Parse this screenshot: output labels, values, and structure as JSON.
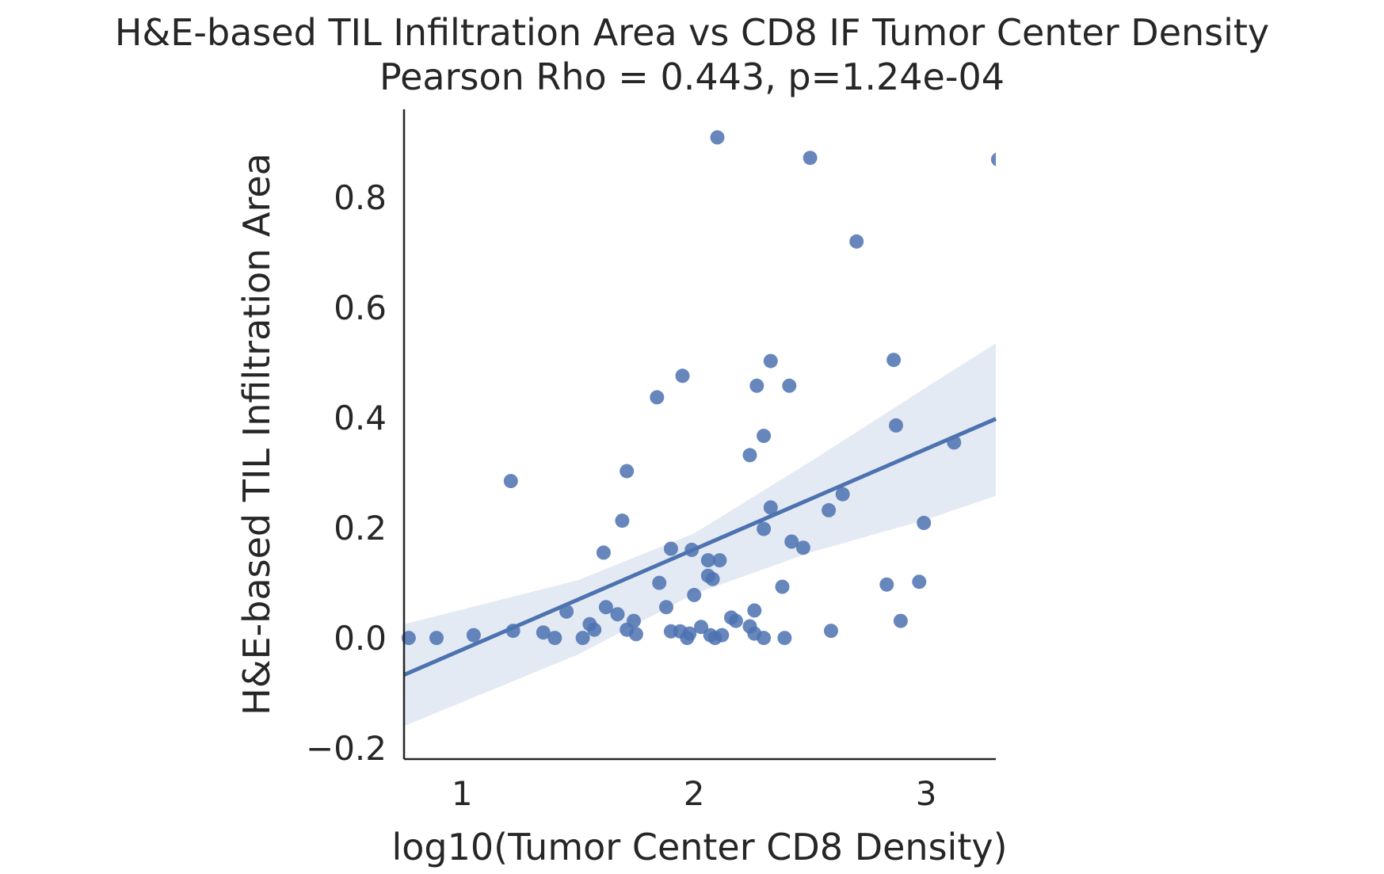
{
  "chart_data": {
    "type": "scatter",
    "title": "H&E-based TIL Infiltration Area vs CD8 IF Tumor Center Density",
    "subtitle": "Pearson Rho = 0.443, p=1.24e-04",
    "xlabel": "log10(Tumor Center CD8 Density)",
    "ylabel": "H&E-based TIL Infiltration Area",
    "xlim": [
      0.75,
      3.3
    ],
    "ylim": [
      -0.22,
      0.96
    ],
    "xticks": [
      1,
      2,
      3
    ],
    "xtick_labels": [
      "1",
      "2",
      "3"
    ],
    "yticks": [
      -0.2,
      0.0,
      0.2,
      0.4,
      0.6,
      0.8
    ],
    "ytick_labels": [
      "−0.2",
      "0.0",
      "0.2",
      "0.4",
      "0.6",
      "0.8"
    ],
    "grid": false,
    "colors": {
      "points": "#4c72b0",
      "line": "#4c72b0",
      "band": "#4c72b0"
    },
    "points": [
      [
        0.77,
        0.0
      ],
      [
        0.89,
        0.0
      ],
      [
        1.05,
        0.005
      ],
      [
        1.21,
        0.285
      ],
      [
        1.22,
        0.013
      ],
      [
        1.35,
        0.01
      ],
      [
        1.4,
        0.0
      ],
      [
        1.45,
        0.048
      ],
      [
        1.52,
        0.0
      ],
      [
        1.55,
        0.025
      ],
      [
        1.57,
        0.015
      ],
      [
        1.61,
        0.155
      ],
      [
        1.62,
        0.056
      ],
      [
        1.67,
        0.043
      ],
      [
        1.69,
        0.213
      ],
      [
        1.71,
        0.303
      ],
      [
        1.71,
        0.015
      ],
      [
        1.74,
        0.031
      ],
      [
        1.75,
        0.007
      ],
      [
        1.84,
        0.437
      ],
      [
        1.85,
        0.1
      ],
      [
        1.88,
        0.056
      ],
      [
        1.9,
        0.012
      ],
      [
        1.9,
        0.162
      ],
      [
        1.94,
        0.012
      ],
      [
        1.95,
        0.476
      ],
      [
        1.97,
        0.0
      ],
      [
        1.98,
        0.008
      ],
      [
        1.99,
        0.16
      ],
      [
        2.0,
        0.078
      ],
      [
        2.03,
        0.02
      ],
      [
        2.06,
        0.141
      ],
      [
        2.06,
        0.113
      ],
      [
        2.07,
        0.005
      ],
      [
        2.08,
        0.107
      ],
      [
        2.09,
        0.0
      ],
      [
        2.1,
        0.909
      ],
      [
        2.11,
        0.141
      ],
      [
        2.12,
        0.005
      ],
      [
        2.16,
        0.037
      ],
      [
        2.18,
        0.031
      ],
      [
        2.24,
        0.332
      ],
      [
        2.24,
        0.021
      ],
      [
        2.26,
        0.05
      ],
      [
        2.26,
        0.008
      ],
      [
        2.27,
        0.458
      ],
      [
        2.3,
        0.367
      ],
      [
        2.3,
        0.198
      ],
      [
        2.3,
        0.0
      ],
      [
        2.33,
        0.503
      ],
      [
        2.33,
        0.237
      ],
      [
        2.38,
        0.093
      ],
      [
        2.39,
        0.0
      ],
      [
        2.41,
        0.458
      ],
      [
        2.42,
        0.175
      ],
      [
        2.47,
        0.164
      ],
      [
        2.5,
        0.872
      ],
      [
        2.58,
        0.232
      ],
      [
        2.59,
        0.013
      ],
      [
        2.64,
        0.261
      ],
      [
        2.7,
        0.72
      ],
      [
        2.83,
        0.097
      ],
      [
        2.86,
        0.505
      ],
      [
        2.87,
        0.386
      ],
      [
        2.89,
        0.031
      ],
      [
        2.97,
        0.102
      ],
      [
        2.99,
        0.209
      ],
      [
        3.12,
        0.355
      ],
      [
        3.31,
        0.869
      ]
    ],
    "regression": {
      "x": [
        0.75,
        3.3
      ],
      "y": [
        -0.067,
        0.398
      ]
    },
    "confidence_band": {
      "x": [
        0.75,
        1.5,
        2.0,
        2.5,
        3.0,
        3.3
      ],
      "lower": [
        -0.16,
        -0.03,
        0.08,
        0.155,
        0.215,
        0.258
      ],
      "upper": [
        0.025,
        0.105,
        0.19,
        0.32,
        0.455,
        0.535
      ]
    }
  }
}
